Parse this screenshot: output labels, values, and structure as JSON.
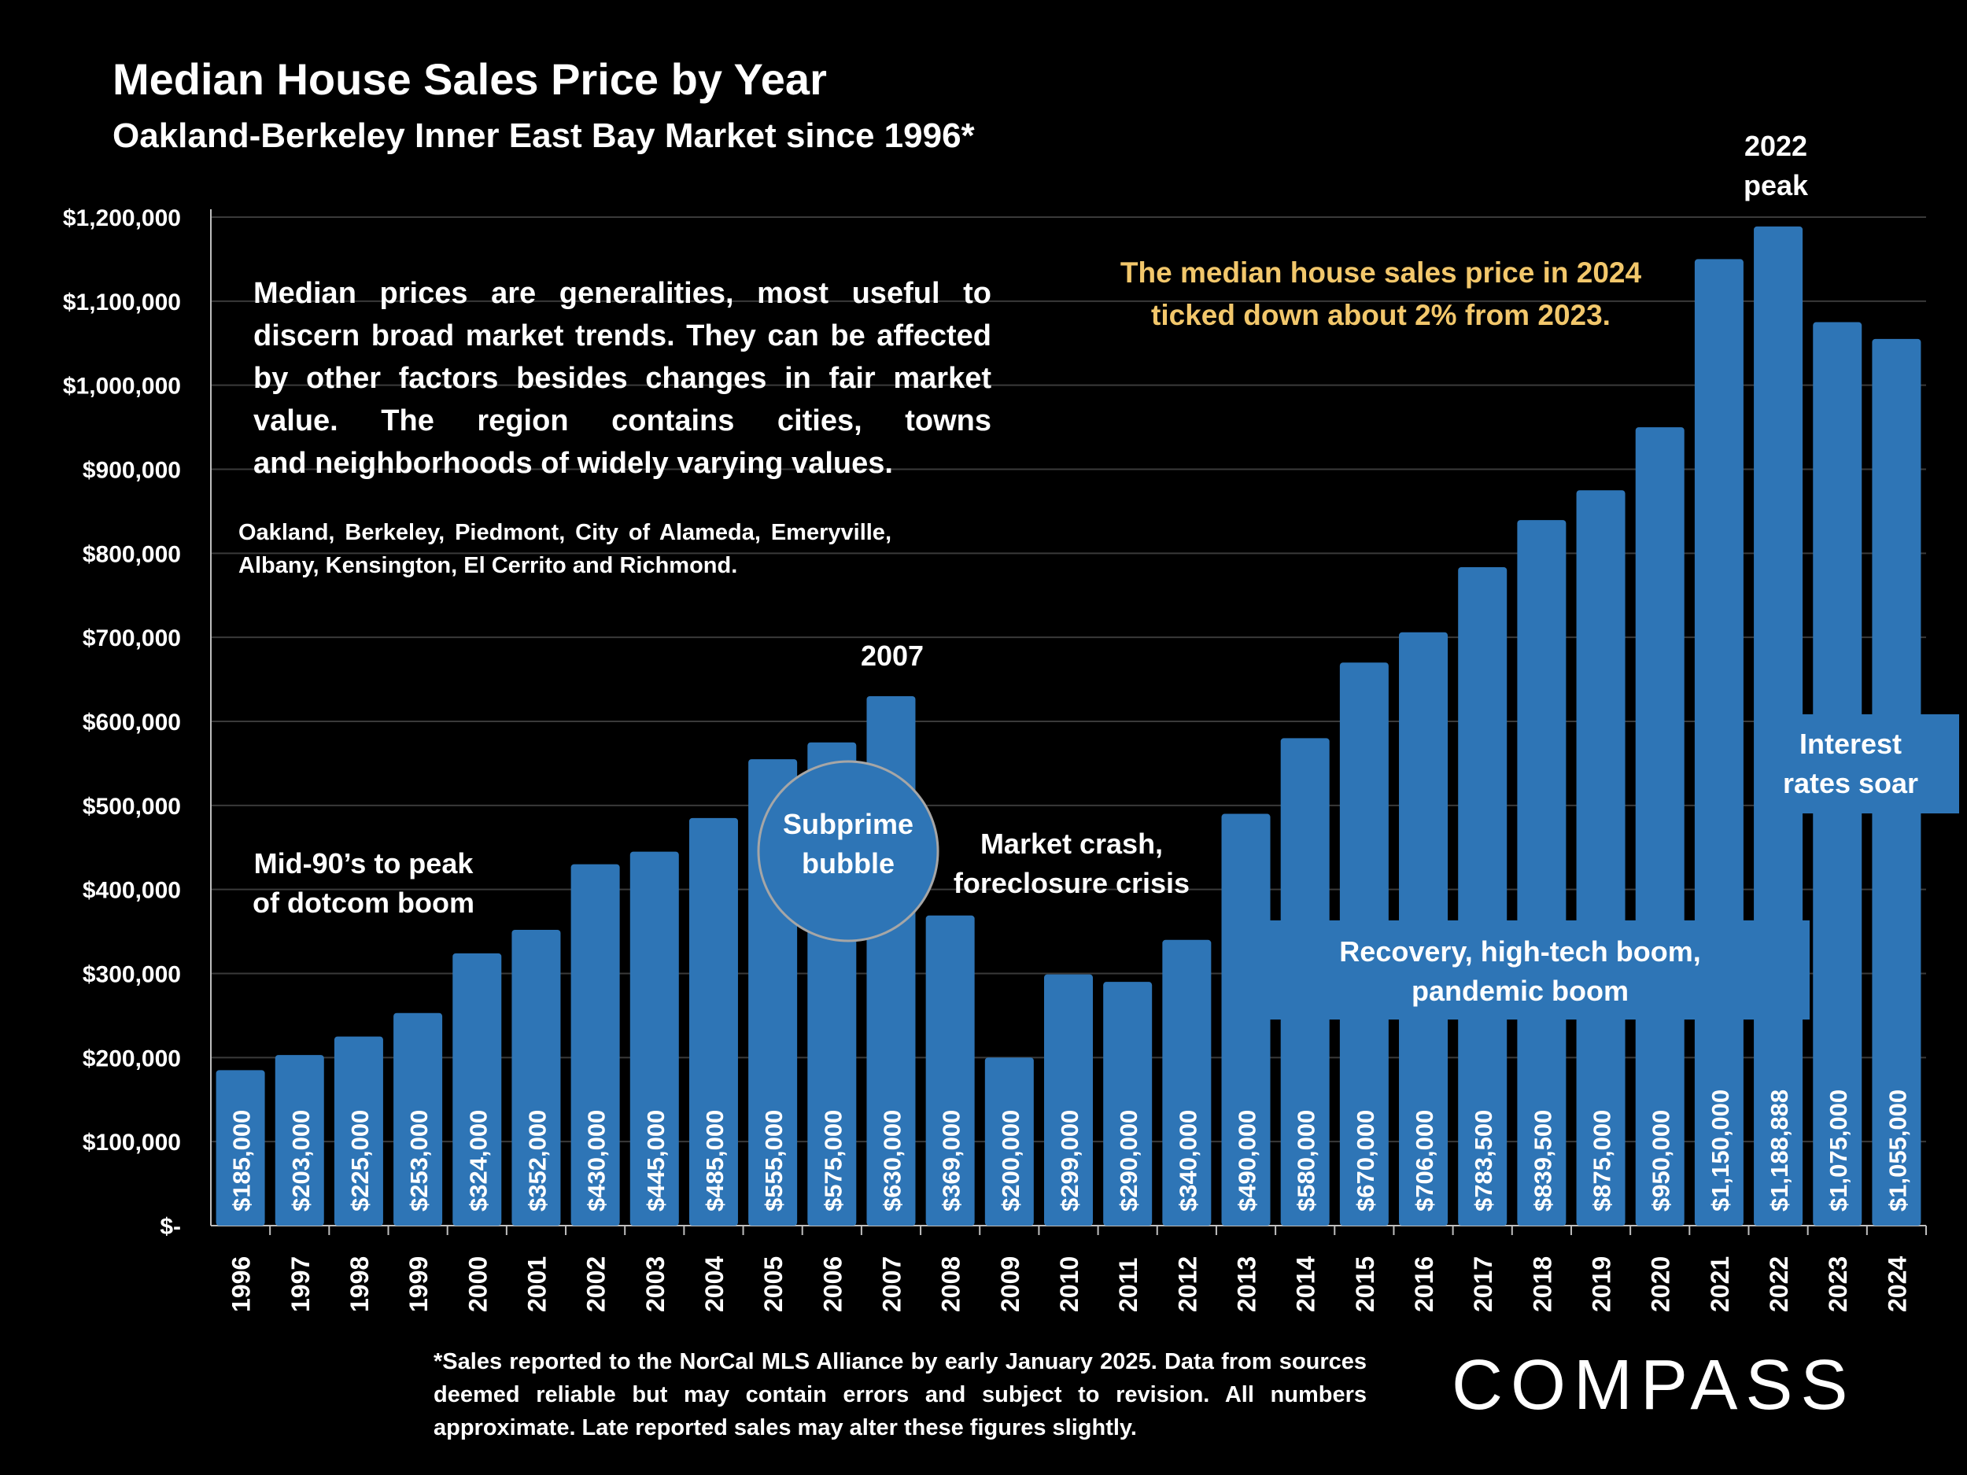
{
  "title": "Median House Sales Price by Year",
  "subtitle": "Oakland-Berkeley Inner East Bay Market since 1996*",
  "note_main_lines": [
    "Median prices are generalities, most useful to",
    "discern broad market trends. They can be",
    "affected by other factors besides changes in fair",
    "market value. The region contains cities, towns",
    "and neighborhoods of widely varying values."
  ],
  "note_cities": "Oakland, Berkeley, Piedmont, City of Alameda, Emeryville, Albany, Kensington, El Cerrito and Richmond.",
  "annotations": {
    "dotcom": [
      "Mid-90’s to peak",
      "of dotcom boom"
    ],
    "subprime": [
      "Subprime",
      "bubble"
    ],
    "year_2007": "2007",
    "crash": [
      "Market crash,",
      "foreclosure crisis"
    ],
    "recovery": [
      "Recovery, high-tech boom,",
      "pandemic boom"
    ],
    "peak_2022": [
      "2022",
      "peak"
    ],
    "rates": [
      "Interest",
      "rates soar"
    ],
    "yellow": [
      "The median house sales price in 2024",
      "ticked down about 2% from 2023."
    ]
  },
  "footnote": "*Sales reported to the NorCal MLS Alliance by early January 2025. Data from sources deemed reliable but may contain errors and subject to revision. All numbers approximate. Late reported sales may alter these figures slightly.",
  "logo": "COMPASS",
  "colors": {
    "bar": "#2e75b6",
    "background": "#000000",
    "accent_text": "#f2c76b",
    "grid": "#3a3a3a"
  },
  "chart_data": {
    "type": "bar",
    "title": "Median House Sales Price by Year",
    "subtitle": "Oakland-Berkeley Inner East Bay Market since 1996*",
    "categories": [
      "1996",
      "1997",
      "1998",
      "1999",
      "2000",
      "2001",
      "2002",
      "2003",
      "2004",
      "2005",
      "2006",
      "2007",
      "2008",
      "2009",
      "2010",
      "2011",
      "2012",
      "2013",
      "2014",
      "2015",
      "2016",
      "2017",
      "2018",
      "2019",
      "2020",
      "2021",
      "2022",
      "2023",
      "2024"
    ],
    "values": [
      185000,
      203000,
      225000,
      253000,
      324000,
      352000,
      430000,
      445000,
      485000,
      555000,
      575000,
      630000,
      369000,
      200000,
      299000,
      290000,
      340000,
      490000,
      580000,
      670000,
      706000,
      783500,
      839500,
      875000,
      950000,
      1150000,
      1188888,
      1075000,
      1055000
    ],
    "data_labels": [
      "$185,000",
      "$203,000",
      "$225,000",
      "$253,000",
      "$324,000",
      "$352,000",
      "$430,000",
      "$445,000",
      "$485,000",
      "$555,000",
      "$575,000",
      "$630,000",
      "$369,000",
      "$200,000",
      "$299,000",
      "$290,000",
      "$340,000",
      "$490,000",
      "$580,000",
      "$670,000",
      "$706,000",
      "$783,500",
      "$839,500",
      "$875,000",
      "$950,000",
      "$1,150,000",
      "$1,188,888",
      "$1,075,000",
      "$1,055,000"
    ],
    "y_ticks": [
      0,
      100000,
      200000,
      300000,
      400000,
      500000,
      600000,
      700000,
      800000,
      900000,
      1000000,
      1100000,
      1200000
    ],
    "y_tick_labels": [
      "$-",
      "$100,000",
      "$200,000",
      "$300,000",
      "$400,000",
      "$500,000",
      "$600,000",
      "$700,000",
      "$800,000",
      "$900,000",
      "$1,000,000",
      "$1,100,000",
      "$1,200,000"
    ],
    "ylim": [
      0,
      1200000
    ],
    "grid": true,
    "legend": "none"
  }
}
